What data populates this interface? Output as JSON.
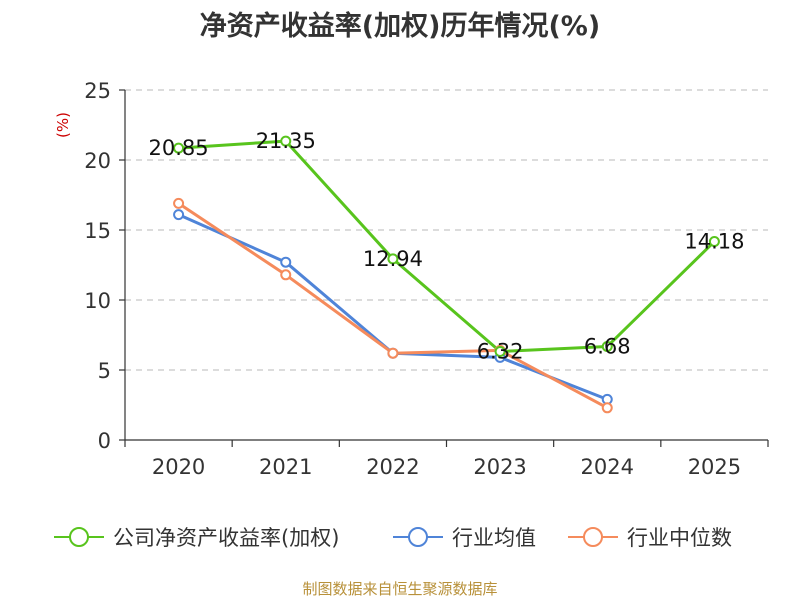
{
  "chart_data": {
    "type": "line",
    "title": "净资产收益率(加权)历年情况(%)",
    "ylabel": "(%)",
    "xlabel": "",
    "categories": [
      "2020",
      "2021",
      "2022",
      "2023",
      "2024",
      "2025"
    ],
    "ylim": [
      0,
      25
    ],
    "yticks": [
      0,
      5,
      10,
      15,
      20,
      25
    ],
    "grid": true,
    "legend_position": "bottom",
    "series": [
      {
        "name": "公司净资产收益率(加权)",
        "color": "#58c41d",
        "values": [
          20.85,
          21.35,
          12.94,
          6.32,
          6.68,
          14.18
        ],
        "labels": true
      },
      {
        "name": "行业均值",
        "color": "#4f84d8",
        "values": [
          16.1,
          12.7,
          6.2,
          5.9,
          2.9,
          null
        ],
        "labels": false
      },
      {
        "name": "行业中位数",
        "color": "#f58b5c",
        "values": [
          16.9,
          11.8,
          6.2,
          6.4,
          2.3,
          null
        ],
        "labels": false
      }
    ]
  },
  "source": "制图数据来自恒生聚源数据库"
}
